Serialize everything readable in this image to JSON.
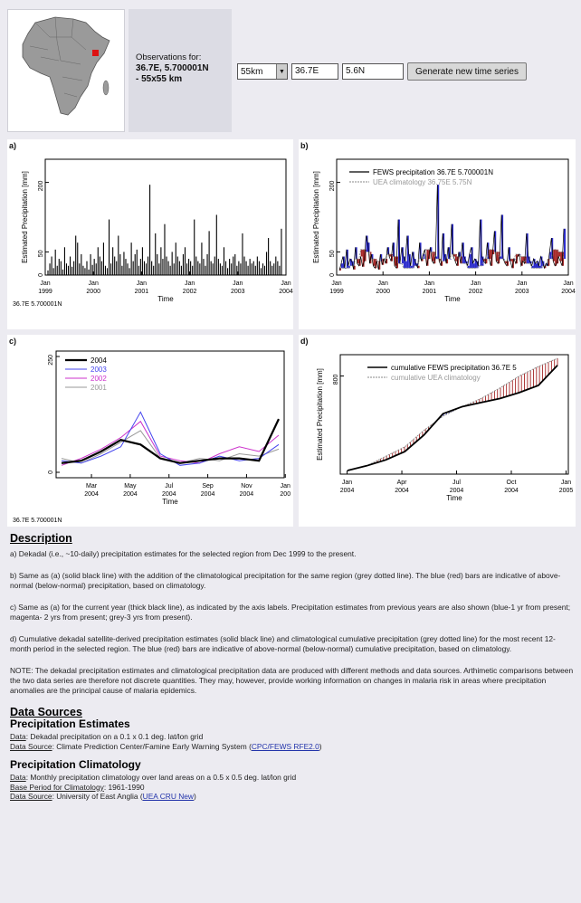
{
  "observation": {
    "label": "Observations for:",
    "coord_line1": "36.7E, 5.700001N",
    "coord_line2": "- 55x55 km"
  },
  "controls": {
    "size_value": "55km",
    "lon_value": "36.7E",
    "lat_value": "5.6N",
    "generate_label": "Generate new time series"
  },
  "panels": {
    "a": {
      "label": "a)",
      "ylabel": "Estimated Precipitation [mm]",
      "xlabel": "Time",
      "location": "36.7E 5.700001N",
      "yticks": [
        "200",
        "50",
        "0"
      ],
      "xticks": [
        {
          "top": "Jan",
          "bottom": "1999"
        },
        {
          "top": "Jan",
          "bottom": "2000"
        },
        {
          "top": "Jan",
          "bottom": "2001"
        },
        {
          "top": "Jan",
          "bottom": "2002"
        },
        {
          "top": "Jan",
          "bottom": "2003"
        },
        {
          "top": "Jan",
          "bottom": "2004"
        }
      ]
    },
    "b": {
      "label": "b)",
      "ylabel": "Estimated Precipitation [mm]",
      "xlabel": "Time",
      "legend": [
        "FEWS precipitation 36.7E 5.700001N",
        "UEA climatology 36.75E 5.75N"
      ],
      "yticks": [
        "200",
        "50",
        "0"
      ],
      "xticks": [
        {
          "top": "Jan",
          "bottom": "1999"
        },
        {
          "top": "Jan",
          "bottom": "2000"
        },
        {
          "top": "Jan",
          "bottom": "2001"
        },
        {
          "top": "Jan",
          "bottom": "2002"
        },
        {
          "top": "Jan",
          "bottom": "2003"
        },
        {
          "top": "Jan",
          "bottom": "2004"
        }
      ]
    },
    "c": {
      "label": "c)",
      "xlabel": "Time",
      "location": "36.7E 5.700001N",
      "legend": [
        "2004",
        "2003",
        "2002",
        "2001"
      ],
      "yticks": [
        "250",
        "0"
      ],
      "xticks": [
        {
          "top": "Mar",
          "bottom": "2004"
        },
        {
          "top": "May",
          "bottom": "2004"
        },
        {
          "top": "Jul",
          "bottom": "2004"
        },
        {
          "top": "Sep",
          "bottom": "2004"
        },
        {
          "top": "Nov",
          "bottom": "2004"
        },
        {
          "top": "Jan",
          "bottom": "200"
        }
      ]
    },
    "d": {
      "label": "d)",
      "ylabel": "Estimated Precipitation [mm]",
      "xlabel": "Time",
      "legend": [
        "cumulative FEWS precipitation 36.7E 5",
        "cumulative UEA climatology"
      ],
      "yticks": [
        "800"
      ],
      "xticks": [
        {
          "top": "Jan",
          "bottom": "2004"
        },
        {
          "top": "Apr",
          "bottom": "2004"
        },
        {
          "top": "Jul",
          "bottom": "2004"
        },
        {
          "top": "Oct",
          "bottom": "2004"
        },
        {
          "top": "Jan",
          "bottom": "2005"
        }
      ]
    }
  },
  "chart_data": [
    {
      "type": "bar",
      "panel": "a",
      "xlim": [
        "1999-12",
        "2004-12"
      ],
      "ylim": [
        0,
        250
      ],
      "series": [
        {
          "values": [
            10,
            25,
            40,
            15,
            55,
            20,
            35,
            30,
            12,
            60,
            25,
            20,
            40,
            18,
            30,
            85,
            70,
            25,
            45,
            20,
            15,
            30,
            12,
            45,
            22,
            35,
            25,
            60,
            40,
            30,
            70,
            20,
            15,
            120,
            25,
            60,
            40,
            30,
            85,
            45,
            20,
            50,
            35,
            25,
            15,
            70,
            30,
            45,
            55,
            20,
            35,
            60,
            30,
            25,
            40,
            195,
            30,
            20,
            90,
            45,
            25,
            60,
            35,
            110,
            40,
            30,
            20,
            50,
            25,
            70,
            40,
            30,
            20,
            45,
            60,
            25,
            35,
            30,
            20,
            120,
            40,
            30,
            25,
            70,
            35,
            20,
            45,
            95,
            30,
            25,
            40,
            130,
            35,
            25,
            20,
            60,
            30,
            15,
            35,
            25,
            40,
            45,
            20,
            30,
            25,
            90,
            40,
            30,
            20,
            35,
            25,
            30,
            20,
            40,
            30,
            15,
            25,
            20,
            50,
            80,
            30,
            20,
            25,
            40,
            30,
            20,
            100
          ]
        }
      ]
    },
    {
      "type": "bar",
      "panel": "b",
      "xlim": [
        "1999-12",
        "2004-12"
      ],
      "ylim": [
        0,
        250
      ],
      "series": [
        {
          "name": "FEWS precipitation 36.7E 5.700001N",
          "values": [
            10,
            25,
            40,
            15,
            55,
            20,
            35,
            30,
            12,
            60,
            25,
            20,
            40,
            18,
            30,
            85,
            70,
            25,
            45,
            20,
            15,
            30,
            12,
            45,
            22,
            35,
            25,
            60,
            40,
            30,
            70,
            20,
            15,
            120,
            25,
            60,
            40,
            30,
            85,
            45,
            20,
            50,
            35,
            25,
            15,
            70,
            30,
            45,
            55,
            20,
            35,
            60,
            30,
            25,
            40,
            195,
            30,
            20,
            90,
            45,
            25,
            60,
            35,
            110,
            40,
            30,
            20,
            50,
            25,
            70,
            40,
            30,
            20,
            45,
            60,
            25,
            35,
            30,
            20,
            120,
            40,
            30,
            25,
            70,
            35,
            20,
            45,
            95,
            30,
            25,
            40,
            130,
            35,
            25,
            20,
            60,
            30,
            15,
            35,
            25,
            40,
            45,
            20,
            30,
            25,
            90,
            40,
            30,
            20,
            35,
            25,
            30,
            20,
            40,
            30,
            15,
            25,
            20,
            50,
            80,
            30,
            20,
            25,
            40,
            30,
            20,
            100
          ]
        },
        {
          "name": "UEA climatology 36.75E 5.75N",
          "values": [
            15,
            15,
            20,
            35,
            55,
            50,
            35,
            30,
            35,
            45,
            40,
            25
          ]
        }
      ]
    },
    {
      "type": "line",
      "panel": "c",
      "x": [
        "2004-01",
        "2004-02",
        "2004-03",
        "2004-04",
        "2004-05",
        "2004-06",
        "2004-07",
        "2004-08",
        "2004-09",
        "2004-10",
        "2004-11",
        "2004-12"
      ],
      "ylim": [
        0,
        250
      ],
      "series": [
        {
          "name": "2004",
          "values": [
            20,
            25,
            45,
            70,
            60,
            30,
            20,
            25,
            30,
            30,
            25,
            115
          ]
        },
        {
          "name": "2003",
          "values": [
            25,
            20,
            35,
            55,
            130,
            40,
            15,
            20,
            35,
            25,
            30,
            60
          ]
        },
        {
          "name": "2002",
          "values": [
            15,
            30,
            50,
            75,
            110,
            35,
            25,
            20,
            40,
            55,
            45,
            80
          ]
        },
        {
          "name": "2001",
          "values": [
            30,
            20,
            40,
            65,
            90,
            30,
            20,
            30,
            25,
            40,
            35,
            50
          ]
        }
      ]
    },
    {
      "type": "line",
      "panel": "d",
      "x": [
        "2004-01",
        "2004-02",
        "2004-03",
        "2004-04",
        "2004-05",
        "2004-06",
        "2004-07",
        "2004-08",
        "2004-09",
        "2004-10",
        "2004-11",
        "2004-12"
      ],
      "ylim": [
        0,
        950
      ],
      "series": [
        {
          "name": "cumulative FEWS precipitation 36.7E 5",
          "values": [
            0,
            40,
            90,
            160,
            300,
            480,
            540,
            575,
            610,
            660,
            720,
            890
          ]
        },
        {
          "name": "cumulative UEA climatology",
          "values": [
            0,
            40,
            120,
            200,
            340,
            460,
            540,
            610,
            700,
            800,
            880,
            950
          ]
        }
      ]
    }
  ],
  "description": {
    "heading": "Description",
    "a": "a) Dekadal (i.e., ~10-daily) precipitation estimates for the selected region from Dec 1999 to the present.",
    "b": "b) Same as (a) (solid black line) with the addition of the climatological precipitation for the same region (grey dotted line). The blue (red) bars are indicative of above-normal (below-normal) precipitation, based on climatology.",
    "c": "c) Same as (a) for the current year (thick black line), as indicated by the axis labels. Precipitation estimates from previous years are also shown (blue-1 yr from present; magenta- 2 yrs from present; grey-3 yrs from present).",
    "d": "d) Cumulative dekadal satellite-derived precipitation estimates (solid black line) and climatological cumulative precipitation (grey dotted line) for the most recent 12-month period in the selected region. The blue (red) bars are indicative of above-normal (below-normal) cumulative precipitation, based on climatology.",
    "note": "NOTE: The dekadal precipitation estimates and climatological precipitation data are produced with different methods and data sources. Arthimetic comparisons between the two data series are therefore not discrete quantities. They may, however, provide working information on changes in malaria risk in areas where precipitation anomalies are the principal cause of malaria epidemics."
  },
  "sources": {
    "heading": "Data Sources",
    "precip_title": "Precipitation Estimates",
    "precip_data_label": "Data",
    "precip_data": ": Dekadal precipitation on a 0.1 x 0.1 deg. lat/lon grid",
    "precip_source_label": "Data Source",
    "precip_source": ": Climate Prediction Center/Famine Early Warning System (",
    "precip_link": "CPC/FEWS RFE2.0",
    "precip_close": ")",
    "clim_title": "Precipitation Climatology",
    "clim_data_label": "Data",
    "clim_data": ": Monthly precipitation climatology over land areas on a 0.5 x 0.5 deg. lat/lon grid",
    "clim_period_label": "Base Period for Climatology",
    "clim_period": ": 1961-1990",
    "clim_source_label": "Data Source",
    "clim_source": ": University of East Anglia (",
    "clim_link": "UEA CRU New",
    "clim_close": ")"
  },
  "colors": {
    "above": "#2a2acc",
    "below": "#a52525",
    "y2003": "#4444ee",
    "y2002": "#cc33cc",
    "y2001": "#999999"
  }
}
